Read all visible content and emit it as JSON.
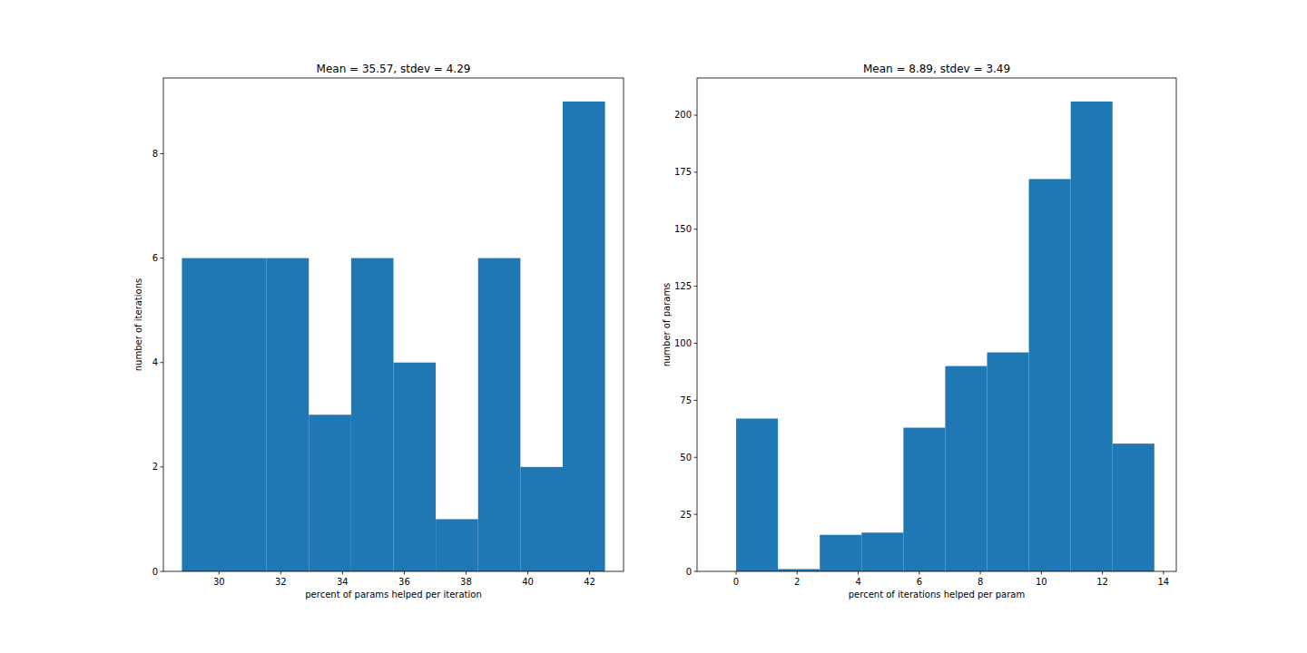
{
  "chart_data": [
    {
      "type": "histogram",
      "title": "Mean = 35.57, stdev = 4.29",
      "x_label": "percent of params helped per iteration",
      "y_label": "number of iterations",
      "bins": [
        28.8,
        30.17,
        31.54,
        32.91,
        34.28,
        35.65,
        37.02,
        38.39,
        39.76,
        41.13,
        42.5
      ],
      "values": [
        6,
        6,
        6,
        3,
        6,
        4,
        1,
        6,
        2,
        9
      ],
      "color": "#1f77b4",
      "xlim": [
        28.2,
        43.1
      ],
      "xticks": [
        30,
        32,
        34,
        36,
        38,
        40,
        42
      ],
      "ylim": [
        0,
        9.45
      ],
      "yticks": [
        0,
        2,
        4,
        6,
        8
      ],
      "grid": false
    },
    {
      "type": "histogram",
      "title": "Mean = 8.89, stdev = 3.49",
      "x_label": "percent of iterations helped per param",
      "y_label": "number of params",
      "bins": [
        0,
        1.37,
        2.74,
        4.11,
        5.48,
        6.85,
        8.22,
        9.59,
        10.96,
        12.33,
        13.7
      ],
      "values": [
        67,
        1,
        16,
        17,
        63,
        90,
        96,
        172,
        206,
        56
      ],
      "color": "#1f77b4",
      "xlim": [
        -1.28,
        14.42
      ],
      "xticks": [
        0,
        2,
        4,
        6,
        8,
        10,
        12,
        14
      ],
      "ylim": [
        0,
        216.3
      ],
      "yticks": [
        0,
        25,
        50,
        75,
        100,
        125,
        150,
        175,
        200
      ],
      "grid": false
    }
  ]
}
